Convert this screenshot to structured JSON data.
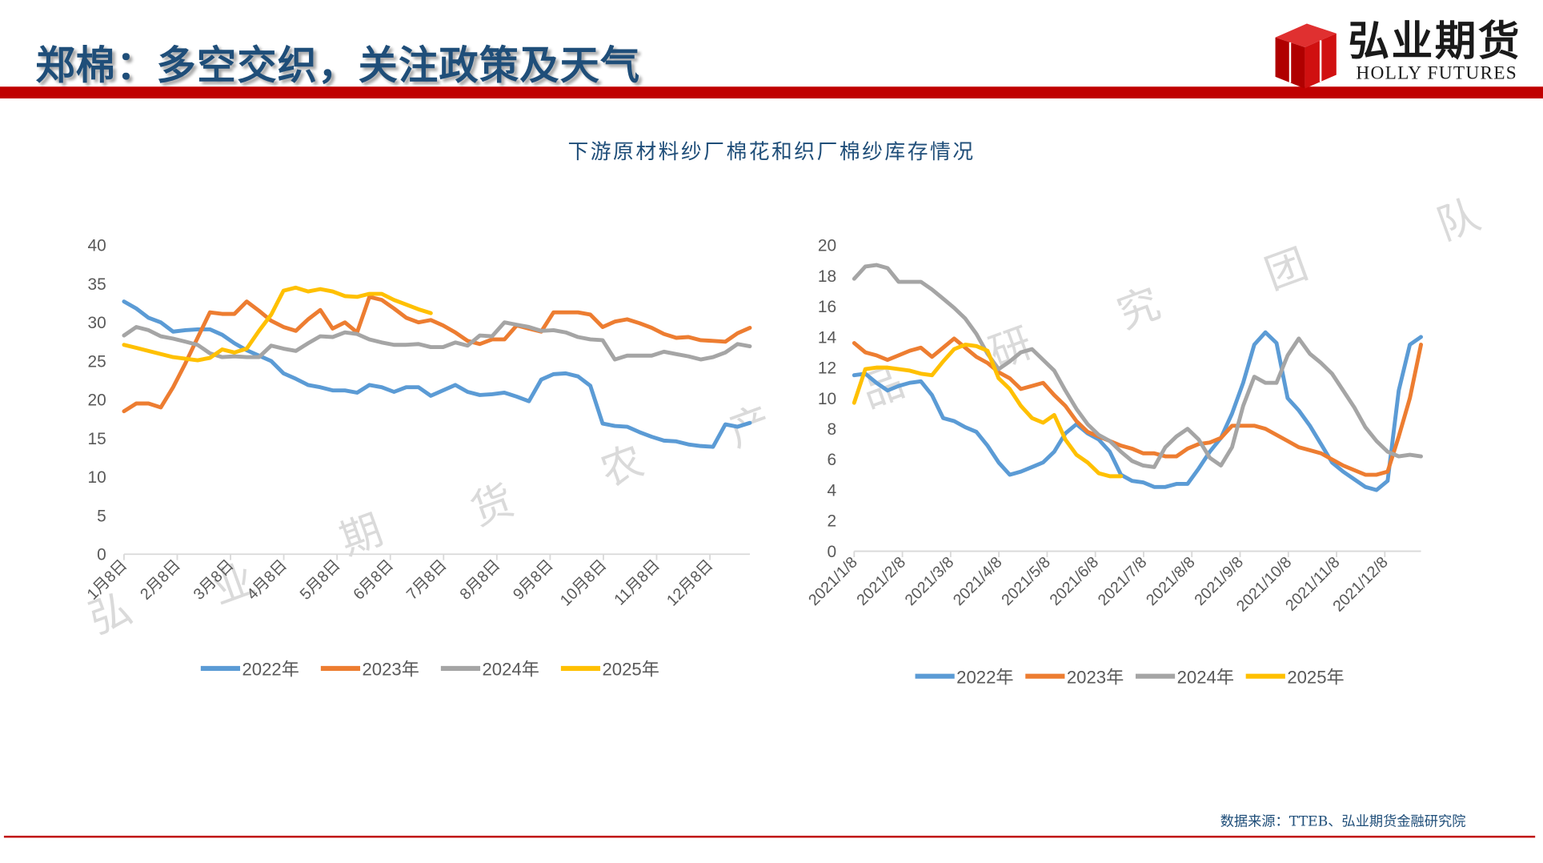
{
  "header": {
    "title": "郑棉：多空交织，关注政策及天气"
  },
  "logo": {
    "cn": "弘业期货",
    "en": "HOLLY FUTURES",
    "colors": {
      "cube": "#c00000"
    }
  },
  "main": {
    "chart_title": "下游原材料纱厂棉花和织厂棉纱库存情况"
  },
  "footer": {
    "source": "数据来源：TTEB、弘业期货金融研究院"
  },
  "watermark": [
    "弘",
    "业",
    "期",
    "货",
    "农",
    "产",
    "品",
    "研",
    "究",
    "团",
    "队"
  ],
  "colors": {
    "2022年": "#5b9bd5",
    "2023年": "#ed7d31",
    "2024年": "#a5a5a5",
    "2025年": "#ffc000",
    "brand_red": "#c00000",
    "title_blue": "#1f4e79"
  },
  "chart_data": [
    {
      "type": "line",
      "title": "",
      "ylim": [
        0,
        40
      ],
      "yticks": [
        "0",
        "5",
        "10",
        "15",
        "20",
        "25",
        "30",
        "35",
        "40"
      ],
      "xtick_labels": [
        "1月8日",
        "2月8日",
        "3月8日",
        "4月8日",
        "5月8日",
        "6月8日",
        "7月8日",
        "8月8日",
        "9月8日",
        "10月8日",
        "11月8日",
        "12月8日"
      ],
      "grid": false,
      "legend": "bottom",
      "series": [
        {
          "name": "2022年",
          "values": [
            32.7,
            31.8,
            30.6,
            30.0,
            28.8,
            29.0,
            29.1,
            29.1,
            28.4,
            27.3,
            26.4,
            25.7,
            25.0,
            23.4,
            22.7,
            21.9,
            21.6,
            21.2,
            21.2,
            20.9,
            21.9,
            21.6,
            21.0,
            21.6,
            21.6,
            20.5,
            21.2,
            21.9,
            21.0,
            20.6,
            20.7,
            20.9,
            20.4,
            19.8,
            22.6,
            23.3,
            23.4,
            23.0,
            21.8,
            16.9,
            16.6,
            16.5,
            15.8,
            15.2,
            14.7,
            14.6,
            14.2,
            14.0,
            13.9,
            16.8,
            16.5,
            17.0
          ]
        },
        {
          "name": "2023年",
          "values": [
            18.5,
            19.5,
            19.5,
            19.0,
            21.6,
            24.7,
            28.0,
            31.3,
            31.1,
            31.1,
            32.7,
            31.5,
            30.2,
            29.4,
            28.9,
            30.4,
            31.6,
            29.2,
            30.0,
            28.7,
            33.3,
            32.9,
            31.8,
            30.6,
            30.0,
            30.3,
            29.6,
            28.7,
            27.6,
            27.2,
            27.8,
            27.8,
            29.6,
            29.2,
            28.8,
            31.3,
            31.3,
            31.3,
            31.0,
            29.4,
            30.1,
            30.4,
            29.9,
            29.3,
            28.5,
            28.0,
            28.1,
            27.7,
            27.6,
            27.5,
            28.6,
            29.3
          ]
        },
        {
          "name": "2024年",
          "values": [
            28.3,
            29.4,
            29.0,
            28.2,
            27.9,
            27.5,
            27.1,
            26.0,
            25.5,
            25.6,
            25.5,
            25.5,
            27.0,
            26.6,
            26.3,
            27.3,
            28.2,
            28.1,
            28.7,
            28.5,
            27.8,
            27.4,
            27.1,
            27.1,
            27.2,
            26.8,
            26.8,
            27.4,
            27.0,
            28.3,
            28.2,
            30.0,
            29.7,
            29.4,
            28.9,
            29.0,
            28.7,
            28.1,
            27.8,
            27.7,
            25.2,
            25.7,
            25.7,
            25.7,
            26.2,
            25.9,
            25.6,
            25.2,
            25.5,
            26.1,
            27.2,
            26.9
          ]
        },
        {
          "name": "2025年",
          "values": [
            27.1,
            26.7,
            26.3,
            25.9,
            25.5,
            25.3,
            25.1,
            25.4,
            26.5,
            26.1,
            26.6,
            28.9,
            31.0,
            34.1,
            34.5,
            34.0,
            34.3,
            34.0,
            33.4,
            33.3,
            33.7,
            33.7,
            32.9,
            32.3,
            31.7,
            31.2
          ]
        }
      ]
    },
    {
      "type": "line",
      "title": "",
      "ylim": [
        0,
        20
      ],
      "yticks": [
        "0",
        "2",
        "4",
        "6",
        "8",
        "10",
        "12",
        "14",
        "16",
        "18",
        "20"
      ],
      "xtick_labels": [
        "2021/1/8",
        "2021/2/8",
        "2021/3/8",
        "2021/4/8",
        "2021/5/8",
        "2021/6/8",
        "2021/7/8",
        "2021/8/8",
        "2021/9/8",
        "2021/10/8",
        "2021/11/8",
        "2021/12/8"
      ],
      "grid": false,
      "legend": "bottom",
      "series": [
        {
          "name": "2022年",
          "values": [
            11.5,
            11.6,
            11.0,
            10.5,
            10.8,
            11.0,
            11.1,
            10.2,
            8.7,
            8.5,
            8.1,
            7.8,
            6.9,
            5.8,
            5.0,
            5.2,
            5.5,
            5.8,
            6.5,
            7.7,
            8.3,
            7.7,
            7.3,
            6.5,
            5.0,
            4.6,
            4.5,
            4.2,
            4.2,
            4.4,
            4.4,
            5.4,
            6.5,
            7.4,
            9.0,
            11.0,
            13.5,
            14.3,
            13.6,
            10.0,
            9.2,
            8.2,
            7.0,
            5.8,
            5.2,
            4.7,
            4.2,
            4.0,
            4.6,
            10.5,
            13.5,
            14.0
          ]
        },
        {
          "name": "2023年",
          "values": [
            13.6,
            13.0,
            12.8,
            12.5,
            12.8,
            13.1,
            13.3,
            12.7,
            13.3,
            13.9,
            13.3,
            12.7,
            12.3,
            11.7,
            11.3,
            10.6,
            10.8,
            11.0,
            10.2,
            9.5,
            8.5,
            7.8,
            7.5,
            7.2,
            6.9,
            6.7,
            6.4,
            6.4,
            6.2,
            6.2,
            6.7,
            7.0,
            7.1,
            7.4,
            8.2,
            8.2,
            8.2,
            8.0,
            7.6,
            7.2,
            6.8,
            6.6,
            6.4,
            6.0,
            5.6,
            5.3,
            5.0,
            5.0,
            5.2,
            7.5,
            10.0,
            13.5
          ]
        },
        {
          "name": "2024年",
          "values": [
            17.8,
            18.6,
            18.7,
            18.5,
            17.6,
            17.6,
            17.6,
            17.1,
            16.5,
            15.9,
            15.2,
            14.2,
            12.9,
            11.9,
            12.4,
            13.0,
            13.2,
            12.5,
            11.8,
            10.5,
            9.3,
            8.3,
            7.6,
            7.2,
            6.5,
            5.9,
            5.6,
            5.5,
            6.8,
            7.5,
            8.0,
            7.3,
            6.1,
            5.6,
            6.8,
            9.5,
            11.4,
            11.0,
            11.0,
            12.8,
            13.9,
            12.9,
            12.3,
            11.6,
            10.5,
            9.4,
            8.1,
            7.2,
            6.5,
            6.2,
            6.3,
            6.2
          ]
        },
        {
          "name": "2025年",
          "values": [
            9.7,
            11.9,
            12.0,
            12.0,
            11.9,
            11.8,
            11.6,
            11.5,
            12.4,
            13.2,
            13.5,
            13.4,
            13.1,
            11.3,
            10.6,
            9.5,
            8.7,
            8.4,
            8.9,
            7.3,
            6.3,
            5.8,
            5.1,
            4.9,
            4.9
          ]
        }
      ]
    }
  ]
}
